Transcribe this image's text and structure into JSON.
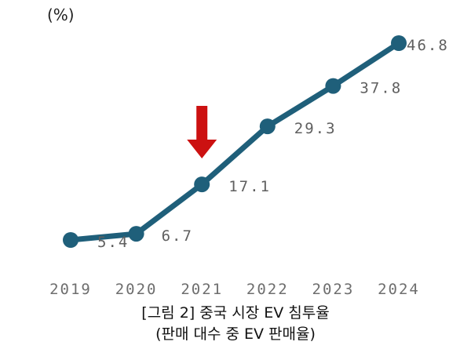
{
  "chart_data": {
    "type": "line",
    "unit_label": "(%)",
    "x": [
      "2019",
      "2020",
      "2021",
      "2022",
      "2023",
      "2024"
    ],
    "series": [
      {
        "values": [
          5.4,
          6.7,
          17.1,
          29.3,
          37.8,
          46.8
        ],
        "color": "#1f5f7a"
      }
    ],
    "data_labels": [
      "5.4",
      "6.7",
      "17.1",
      "29.3",
      "37.8",
      "46.8"
    ],
    "annotation": {
      "type": "down-arrow",
      "at_x": "2021",
      "color": "#cc1111"
    },
    "grid": false,
    "legend": "none"
  },
  "caption": {
    "line1": "[그림 2] 중국 시장 EV 침투율",
    "line2": "(판매 대수 중 EV 판매율)"
  }
}
